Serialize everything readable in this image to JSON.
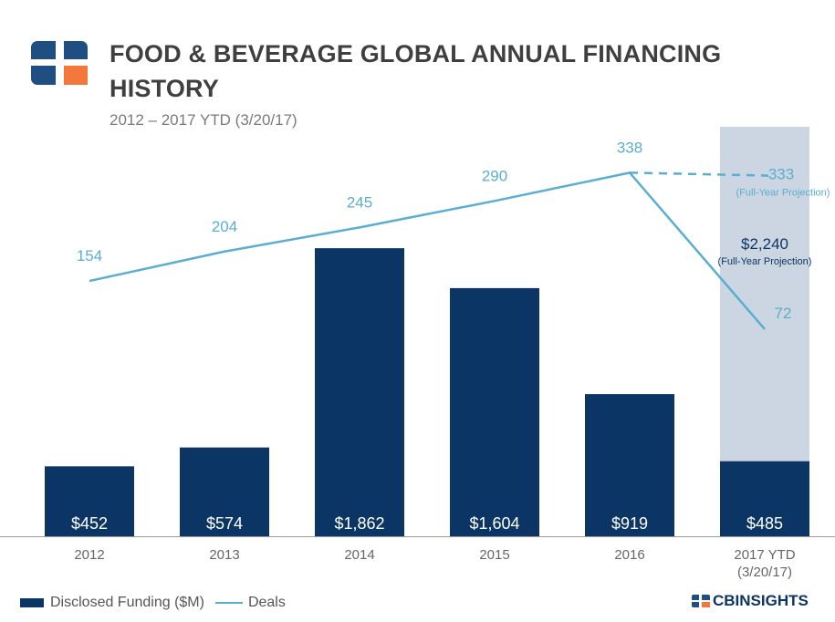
{
  "header": {
    "title": "FOOD & BEVERAGE GLOBAL ANNUAL FINANCING HISTORY",
    "subtitle": "2012 – 2017 YTD (3/20/17)"
  },
  "legend": {
    "funding_label": "Disclosed Funding ($M)",
    "deals_label": "Deals"
  },
  "brand": {
    "name": "CBINSIGHTS"
  },
  "colors": {
    "bar": "#0b3565",
    "line": "#5aaed0",
    "projection_band": "#ccd6e2",
    "logo_accent": "#f2793b"
  },
  "chart_data": {
    "type": "bar",
    "title": "FOOD & BEVERAGE GLOBAL ANNUAL FINANCING HISTORY",
    "subtitle": "2012 – 2017 YTD (3/20/17)",
    "categories": [
      "2012",
      "2013",
      "2014",
      "2015",
      "2016",
      "2017 YTD\n(3/20/17)"
    ],
    "series": [
      {
        "name": "Disclosed Funding ($M)",
        "type": "bar",
        "values": [
          452,
          574,
          1862,
          1604,
          919,
          485
        ],
        "labels": [
          "$452",
          "$574",
          "$1,862",
          "$1,604",
          "$919",
          "$485"
        ]
      },
      {
        "name": "Deals",
        "type": "line",
        "values": [
          154,
          204,
          245,
          290,
          338,
          72
        ]
      }
    ],
    "projections": {
      "funding": {
        "value": 2240,
        "label": "$2,240",
        "note": "(Full-Year Projection)"
      },
      "deals": {
        "value": 333,
        "label": "333",
        "note": "(Full-Year Projection)"
      }
    },
    "funding_ylim": [
      0,
      2700
    ],
    "deals_ylim": [
      -280,
      430
    ]
  }
}
